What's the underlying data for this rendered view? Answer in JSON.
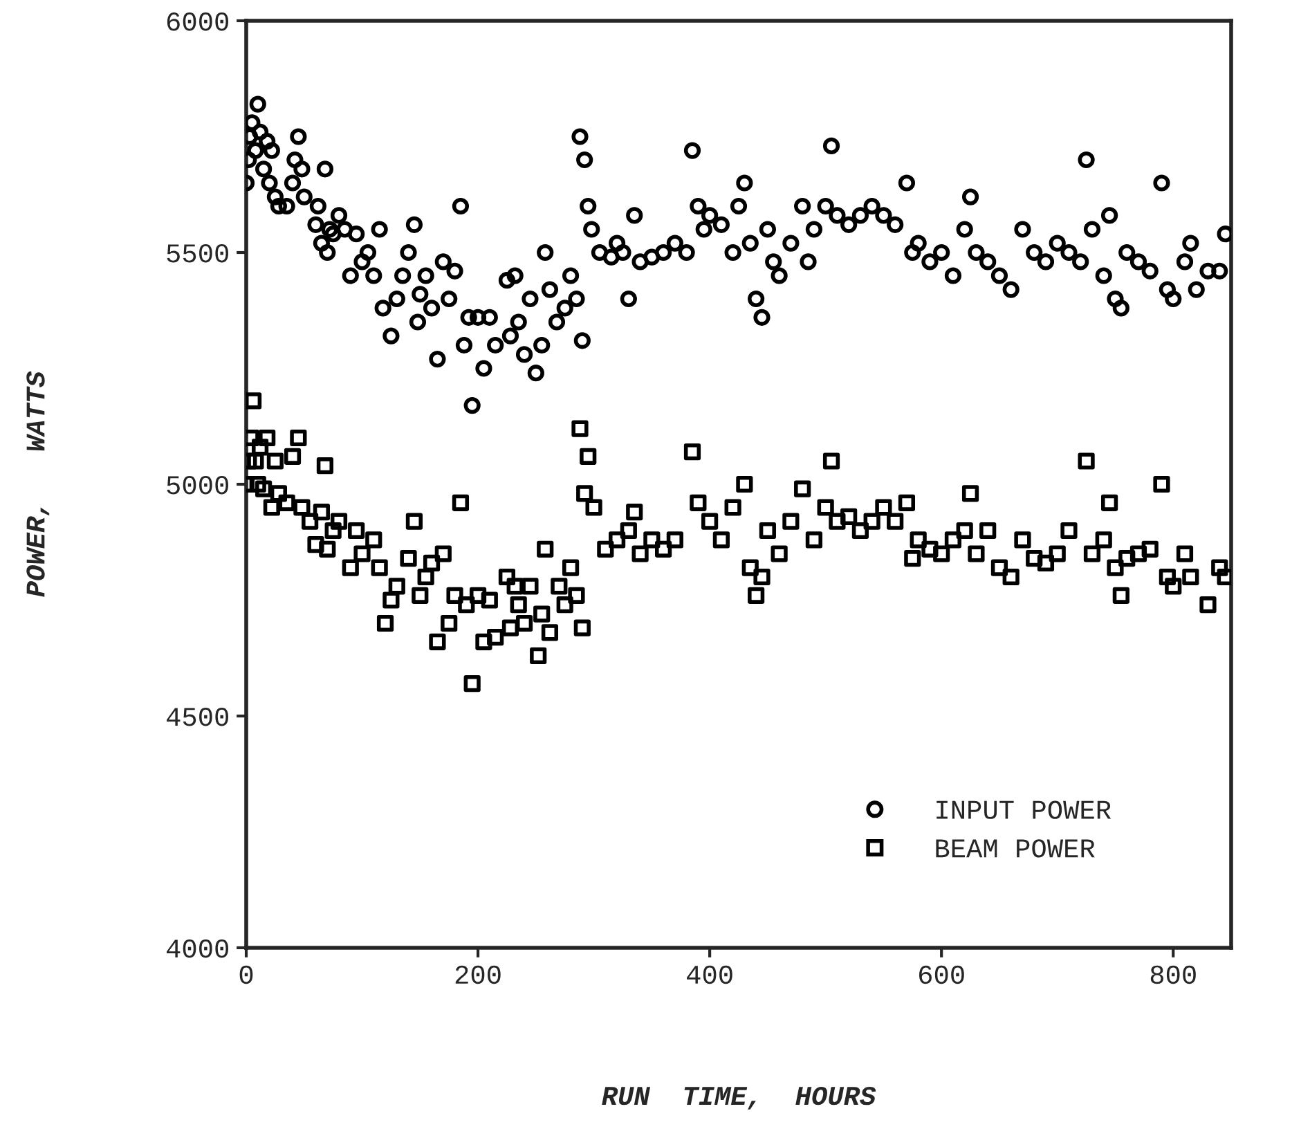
{
  "chart_data": {
    "type": "scatter",
    "xlabel": "RUN  TIME,  HOURS",
    "ylabel": "POWER,   WATTS",
    "xlim": [
      0,
      850
    ],
    "xticks": [
      0,
      200,
      400,
      600,
      800
    ],
    "ylim": [
      4000,
      6000
    ],
    "yticks": [
      4000,
      4500,
      5000,
      5500,
      6000
    ],
    "grid": false,
    "legend": "bottom right",
    "series": [
      {
        "name": "INPUT POWER",
        "color": "#000000",
        "marker": "circle",
        "x": [
          0,
          2,
          3,
          5,
          8,
          10,
          12,
          15,
          18,
          20,
          22,
          25,
          28,
          35,
          40,
          42,
          45,
          48,
          50,
          60,
          62,
          65,
          68,
          70,
          72,
          75,
          80,
          85,
          90,
          95,
          100,
          105,
          110,
          115,
          118,
          125,
          130,
          135,
          140,
          145,
          148,
          150,
          155,
          160,
          165,
          170,
          175,
          180,
          185,
          188,
          192,
          195,
          200,
          205,
          210,
          215,
          225,
          228,
          232,
          235,
          240,
          245,
          250,
          255,
          258,
          262,
          268,
          275,
          280,
          285,
          288,
          290,
          292,
          295,
          298,
          305,
          315,
          320,
          325,
          330,
          335,
          340,
          350,
          360,
          370,
          380,
          385,
          390,
          395,
          400,
          410,
          420,
          425,
          430,
          435,
          440,
          445,
          450,
          455,
          460,
          470,
          480,
          485,
          490,
          500,
          505,
          510,
          520,
          530,
          540,
          550,
          560,
          570,
          575,
          580,
          590,
          600,
          610,
          620,
          625,
          630,
          640,
          650,
          660,
          670,
          680,
          690,
          700,
          710,
          720,
          725,
          730,
          740,
          745,
          750,
          755,
          760,
          770,
          780,
          790,
          795,
          800,
          810,
          815,
          820,
          830,
          840,
          845
        ],
        "values": [
          5650,
          5700,
          5750,
          5780,
          5720,
          5820,
          5760,
          5680,
          5740,
          5650,
          5720,
          5620,
          5600,
          5600,
          5650,
          5700,
          5750,
          5680,
          5620,
          5560,
          5600,
          5520,
          5680,
          5500,
          5550,
          5540,
          5580,
          5550,
          5450,
          5540,
          5480,
          5500,
          5450,
          5550,
          5380,
          5320,
          5400,
          5450,
          5500,
          5560,
          5350,
          5410,
          5450,
          5380,
          5270,
          5480,
          5400,
          5460,
          5600,
          5300,
          5360,
          5170,
          5360,
          5250,
          5360,
          5300,
          5440,
          5320,
          5450,
          5350,
          5280,
          5400,
          5240,
          5300,
          5500,
          5420,
          5350,
          5380,
          5450,
          5400,
          5750,
          5310,
          5700,
          5600,
          5550,
          5500,
          5490,
          5520,
          5500,
          5400,
          5580,
          5480,
          5490,
          5500,
          5520,
          5500,
          5720,
          5600,
          5550,
          5580,
          5560,
          5500,
          5600,
          5650,
          5520,
          5400,
          5360,
          5550,
          5480,
          5450,
          5520,
          5600,
          5480,
          5550,
          5600,
          5730,
          5580,
          5560,
          5580,
          5600,
          5580,
          5560,
          5650,
          5500,
          5520,
          5480,
          5500,
          5450,
          5550,
          5620,
          5500,
          5480,
          5450,
          5420,
          5550,
          5500,
          5480,
          5520,
          5500,
          5480,
          5700,
          5550,
          5450,
          5580,
          5400,
          5380,
          5500,
          5480,
          5460,
          5650,
          5420,
          5400,
          5480,
          5520,
          5420,
          5460,
          5460,
          5540
        ]
      },
      {
        "name": "BEAM POWER",
        "color": "#000000",
        "marker": "square",
        "x": [
          0,
          2,
          4,
          6,
          8,
          10,
          12,
          15,
          18,
          22,
          25,
          28,
          35,
          40,
          45,
          48,
          55,
          60,
          65,
          68,
          70,
          75,
          80,
          90,
          95,
          100,
          110,
          115,
          120,
          125,
          130,
          140,
          145,
          150,
          155,
          160,
          165,
          170,
          175,
          180,
          185,
          190,
          195,
          200,
          205,
          210,
          215,
          225,
          228,
          232,
          235,
          240,
          245,
          252,
          255,
          258,
          262,
          270,
          275,
          280,
          285,
          288,
          290,
          292,
          295,
          300,
          310,
          320,
          330,
          335,
          340,
          350,
          360,
          370,
          385,
          390,
          400,
          410,
          420,
          430,
          435,
          440,
          445,
          450,
          460,
          470,
          480,
          490,
          500,
          505,
          510,
          520,
          530,
          540,
          550,
          560,
          570,
          575,
          580,
          590,
          600,
          610,
          620,
          625,
          630,
          640,
          650,
          660,
          670,
          680,
          690,
          700,
          710,
          725,
          730,
          740,
          745,
          750,
          755,
          760,
          770,
          780,
          790,
          795,
          800,
          810,
          815,
          830,
          840,
          845
        ],
        "values": [
          5000,
          5050,
          5100,
          5180,
          5050,
          5000,
          5080,
          4990,
          5100,
          4950,
          5050,
          4980,
          4960,
          5060,
          5100,
          4950,
          4920,
          4870,
          4940,
          5040,
          4860,
          4900,
          4920,
          4820,
          4900,
          4850,
          4880,
          4820,
          4700,
          4750,
          4780,
          4840,
          4920,
          4760,
          4800,
          4830,
          4660,
          4850,
          4700,
          4760,
          4960,
          4740,
          4570,
          4760,
          4660,
          4750,
          4670,
          4800,
          4690,
          4780,
          4740,
          4700,
          4780,
          4630,
          4720,
          4860,
          4680,
          4780,
          4740,
          4820,
          4760,
          5120,
          4690,
          4980,
          5060,
          4950,
          4860,
          4880,
          4900,
          4940,
          4850,
          4880,
          4860,
          4880,
          5070,
          4960,
          4920,
          4880,
          4950,
          5000,
          4820,
          4760,
          4800,
          4900,
          4850,
          4920,
          4990,
          4880,
          4950,
          5050,
          4920,
          4930,
          4900,
          4920,
          4950,
          4920,
          4960,
          4840,
          4880,
          4860,
          4850,
          4880,
          4900,
          4980,
          4850,
          4900,
          4820,
          4800,
          4880,
          4840,
          4830,
          4850,
          4900,
          5050,
          4850,
          4880,
          4960,
          4820,
          4760,
          4840,
          4850,
          4860,
          5000,
          4800,
          4780,
          4850,
          4800,
          4740,
          4820,
          4800
        ]
      }
    ]
  }
}
